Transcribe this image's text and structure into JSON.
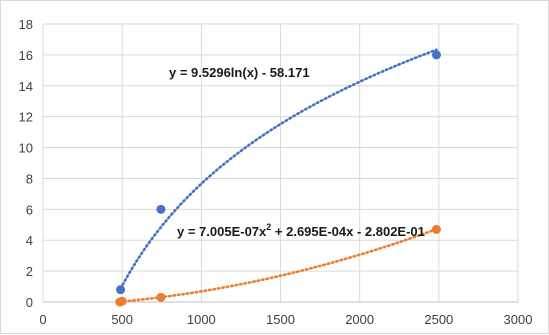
{
  "chart_data": {
    "type": "scatter",
    "xlim": [
      0,
      3000
    ],
    "ylim": [
      0,
      18
    ],
    "x_ticks": [
      0,
      500,
      1000,
      1500,
      2000,
      2500,
      3000
    ],
    "y_ticks": [
      0,
      2,
      4,
      6,
      8,
      10,
      12,
      14,
      16,
      18
    ],
    "grid": {
      "horizontal": true,
      "vertical": true
    },
    "series": [
      {
        "color": "#4472c4",
        "points": [
          {
            "x": 490,
            "y": 0.8
          },
          {
            "x": 745,
            "y": 6.0
          },
          {
            "x": 2485,
            "y": 16.0
          }
        ],
        "trendline": {
          "kind": "logarithmic",
          "a": 9.5296,
          "b": -58.171,
          "x_range": [
            490,
            2485
          ],
          "equation_label": "y = 9.5296ln(x) - 58.171"
        }
      },
      {
        "color": "#ed7d31",
        "points": [
          {
            "x": 485,
            "y": 0.0
          },
          {
            "x": 500,
            "y": 0.05
          },
          {
            "x": 745,
            "y": 0.3
          },
          {
            "x": 2485,
            "y": 4.7
          }
        ],
        "trendline": {
          "kind": "polynomial",
          "coefficients": [
            7.005e-07,
            0.0002695,
            -0.2802
          ],
          "x_range": [
            485,
            2485
          ],
          "equation_label_main": "y = 7.005E-07x",
          "equation_label_sup": "2",
          "equation_label_rest": " + 2.695E-04x - 2.802E-01"
        }
      }
    ]
  }
}
